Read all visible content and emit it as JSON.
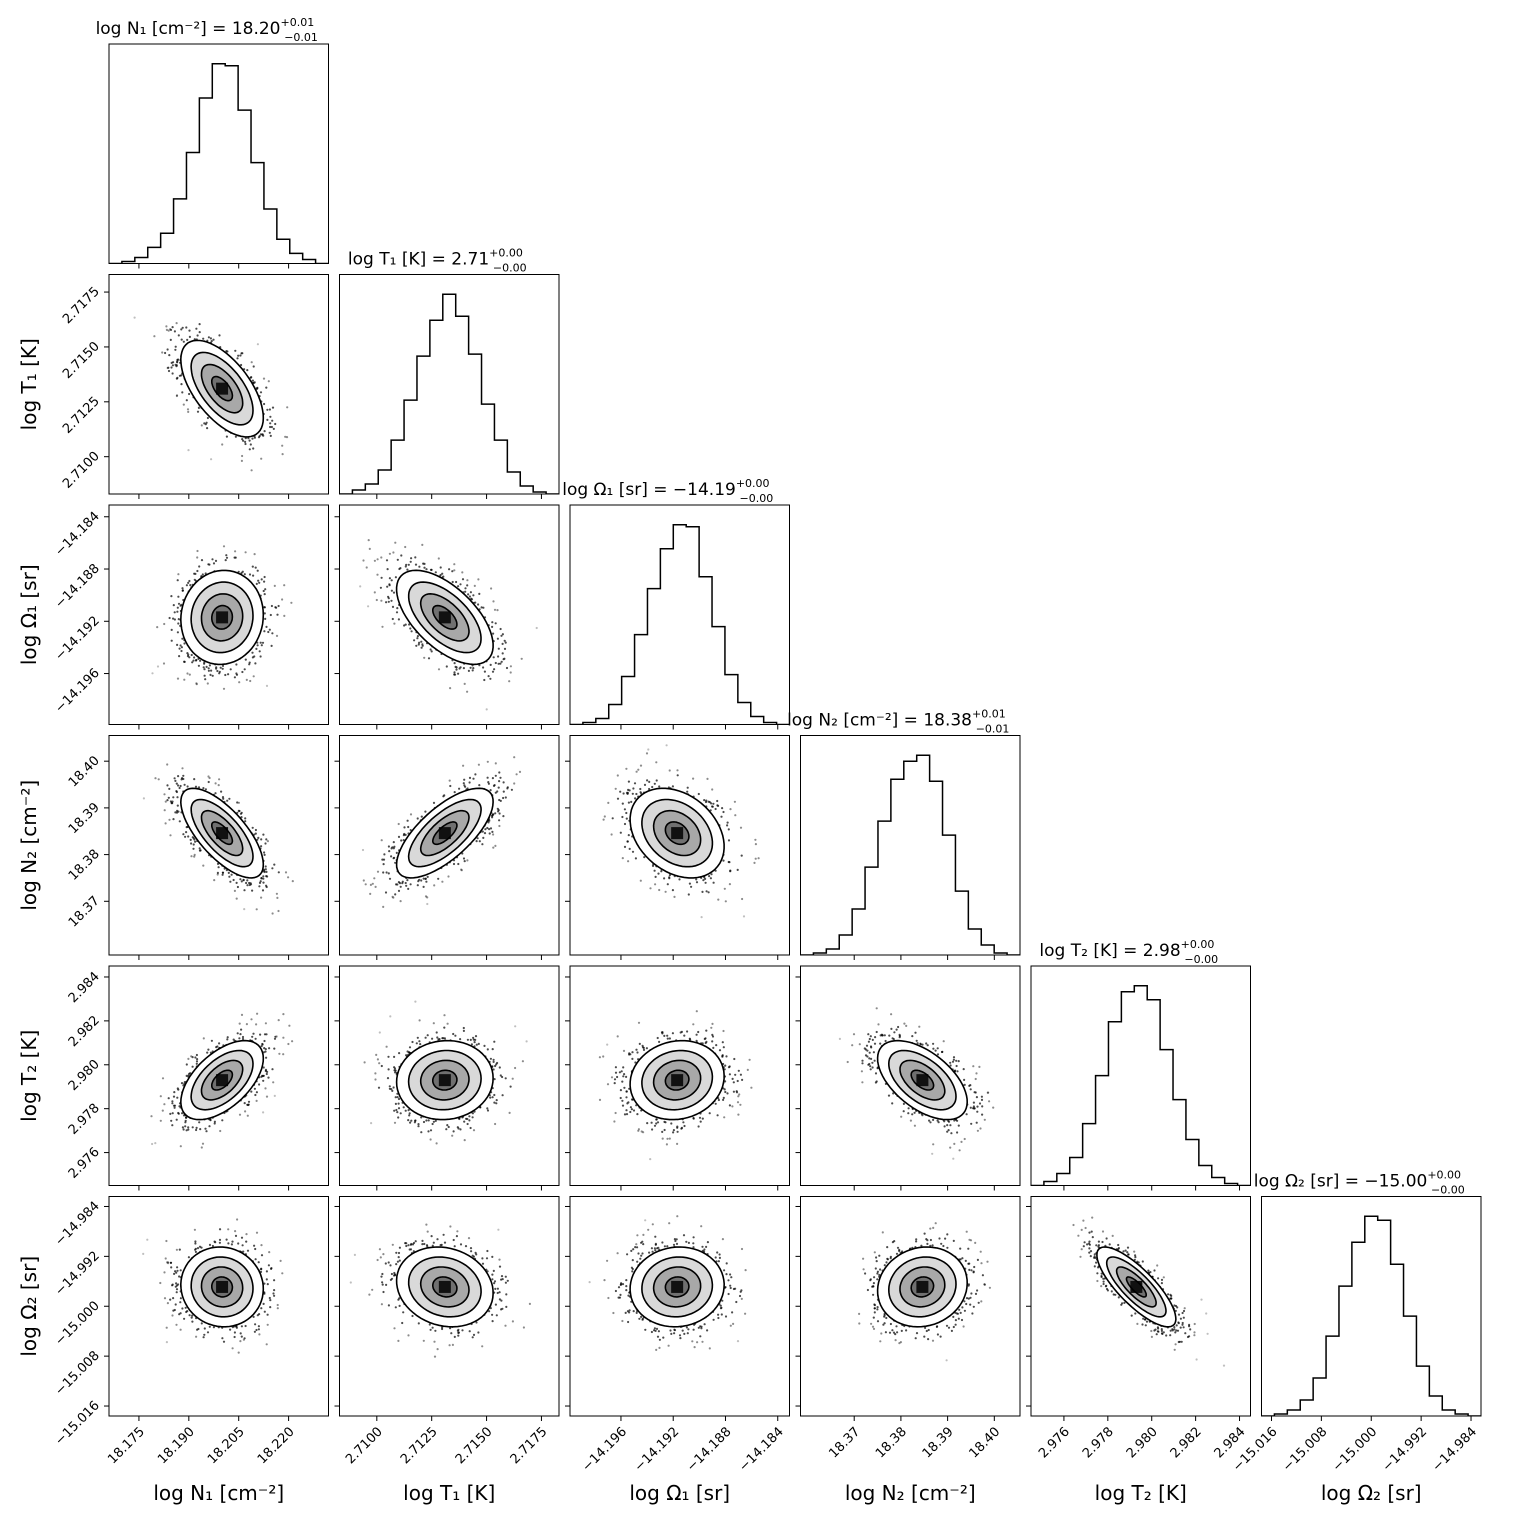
{
  "chart_data": {
    "type": "corner",
    "parameters": [
      {
        "label": "log N₁ [cm⁻²]",
        "median": 18.2,
        "sigma": 0.0062,
        "range": [
          18.166,
          18.232
        ],
        "ticks": [
          18.175,
          18.19,
          18.205,
          18.22
        ],
        "tick_labels": [
          "18.175",
          "18.190",
          "18.205",
          "18.220"
        ],
        "title": {
          "prefix": "log N₁ [cm⁻²] = 18.20",
          "sup": "+0.01",
          "sub": "−0.01"
        },
        "histogram": [
          0,
          1,
          3,
          8,
          15,
          32,
          55,
          82,
          99,
          98,
          76,
          50,
          27,
          12,
          5,
          2,
          0
        ]
      },
      {
        "label": "log T₁ [K]",
        "median": 2.7131,
        "sigma": 0.0011,
        "range": [
          2.7083,
          2.7183
        ],
        "ticks": [
          2.71,
          2.7125,
          2.715,
          2.7175
        ],
        "tick_labels": [
          "2.7100",
          "2.7125",
          "2.7150",
          "2.7175"
        ],
        "title": {
          "prefix": "log T₁ [K] = 2.71",
          "sup": "+0.00",
          "sub": "−0.00"
        },
        "histogram": [
          0,
          2,
          5,
          12,
          27,
          47,
          69,
          87,
          100,
          89,
          70,
          45,
          27,
          11,
          4,
          1,
          0
        ]
      },
      {
        "label": "log Ω₁ [sr]",
        "median": -14.1917,
        "sigma": 0.0018,
        "range": [
          -14.1999,
          -14.1831
        ],
        "ticks": [
          -14.196,
          -14.192,
          -14.188,
          -14.184
        ],
        "tick_labels": [
          "−14.196",
          "−14.192",
          "−14.188",
          "−14.184"
        ],
        "title": {
          "prefix": "log Ω₁ [sr] = −14.19",
          "sup": "+0.00",
          "sub": "−0.00"
        },
        "histogram": [
          0,
          1,
          3,
          10,
          24,
          45,
          68,
          88,
          100,
          99,
          74,
          49,
          25,
          11,
          4,
          1,
          0
        ]
      },
      {
        "label": "log N₂ [cm⁻²]",
        "median": 18.3846,
        "sigma": 0.0048,
        "range": [
          18.3585,
          18.4055
        ],
        "ticks": [
          18.37,
          18.38,
          18.39,
          18.4
        ],
        "tick_labels": [
          "18.37",
          "18.38",
          "18.39",
          "18.40"
        ],
        "title": {
          "prefix": "log N₂ [cm⁻²] = 18.38",
          "sup": "+0.01",
          "sub": "−0.01"
        },
        "histogram": [
          0,
          1,
          3,
          10,
          23,
          44,
          67,
          88,
          97,
          100,
          87,
          60,
          32,
          13,
          5,
          1,
          0
        ]
      },
      {
        "label": "log T₂ [K]",
        "median": 2.9793,
        "sigma": 0.0009,
        "range": [
          2.9745,
          2.9845
        ],
        "ticks": [
          2.976,
          2.978,
          2.98,
          2.982,
          2.984
        ],
        "tick_labels": [
          "2.976",
          "2.978",
          "2.980",
          "2.982",
          "2.984"
        ],
        "title": {
          "prefix": "log T₂ [K] = 2.98",
          "sup": "+0.00",
          "sub": "−0.00"
        },
        "histogram": [
          0,
          2,
          6,
          14,
          31,
          55,
          82,
          97,
          100,
          93,
          68,
          43,
          23,
          10,
          4,
          1,
          0
        ]
      },
      {
        "label": "log Ω₂ [sr]",
        "median": -14.9969,
        "sigma": 0.0032,
        "range": [
          -15.0176,
          -14.9824
        ],
        "ticks": [
          -15.016,
          -15.008,
          -15.0,
          -14.992,
          -14.984
        ],
        "tick_labels": [
          "−15.016",
          "−15.008",
          "−15.000",
          "−14.992",
          "−14.984"
        ],
        "title": {
          "prefix": "log Ω₂ [sr] = −15.00",
          "sup": "+0.00",
          "sub": "−0.00"
        },
        "histogram": [
          0,
          1,
          3,
          8,
          19,
          40,
          65,
          87,
          100,
          98,
          76,
          50,
          25,
          10,
          3,
          1,
          0
        ]
      }
    ],
    "correlations": [
      [
        1,
        -0.6,
        0.05,
        -0.7,
        0.55,
        -0.05
      ],
      [
        -0.6,
        1,
        -0.6,
        0.7,
        0.05,
        -0.15
      ],
      [
        0.05,
        -0.6,
        1,
        -0.3,
        0.1,
        0.05
      ],
      [
        -0.7,
        0.7,
        -0.3,
        1,
        -0.55,
        0.1
      ],
      [
        0.55,
        0.05,
        0.1,
        -0.55,
        1,
        -0.8
      ],
      [
        -0.05,
        -0.15,
        0.05,
        0.1,
        -0.8,
        1
      ]
    ],
    "contour_levels_sigma": [
      0.5,
      1,
      1.5,
      2
    ],
    "grid": false,
    "legend": "none"
  }
}
